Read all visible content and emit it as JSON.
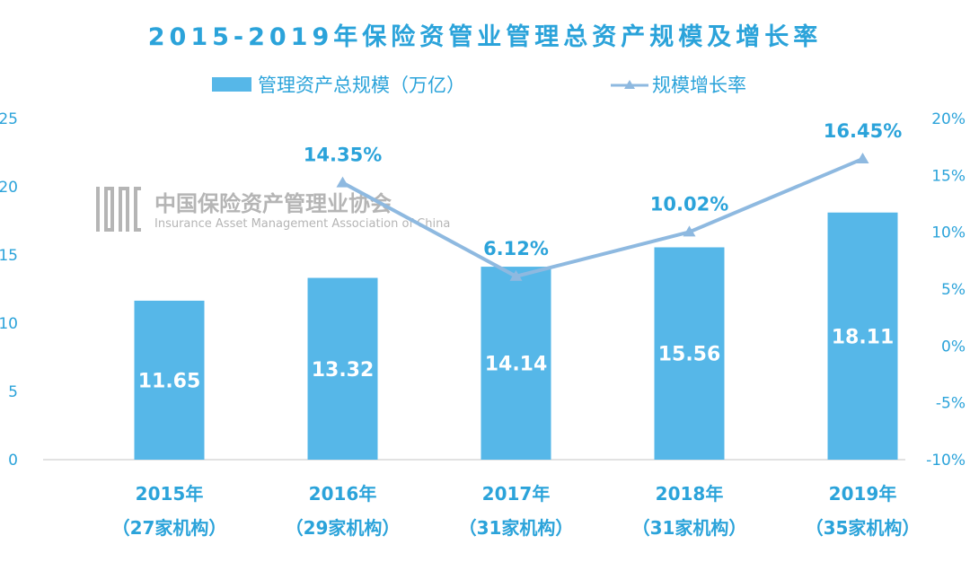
{
  "colors": {
    "bar": "#56B7E8",
    "line": "#8EB9E0",
    "text": "#2BA3DA",
    "axis": "#D9D9D9",
    "watermark": "#B5B5B5",
    "bar_label": "#FFFFFF"
  },
  "watermark": {
    "logo_icon": "iamac-logo-icon",
    "name": "中国保险资产管理业协会",
    "name_en": "Insurance Asset Management Association of China"
  },
  "chart_data": {
    "type": "bar",
    "title": "2015-2019年保险资管业管理总资产规模及增长率",
    "categories": [
      "2015年",
      "2016年",
      "2017年",
      "2018年",
      "2019年"
    ],
    "subcategories": [
      "（27家机构）",
      "（29家机构）",
      "（31家机构）",
      "（31家机构）",
      "（35家机构）"
    ],
    "series": [
      {
        "name": "管理资产总规模（万亿）",
        "type": "bar",
        "axis": "left",
        "values": [
          11.65,
          13.32,
          14.14,
          15.56,
          18.11
        ],
        "labels": [
          "11.65",
          "13.32",
          "14.14",
          "15.56",
          "18.11"
        ]
      },
      {
        "name": "规模增长率",
        "type": "line",
        "marker": "triangle",
        "axis": "right",
        "values": [
          null,
          14.35,
          6.12,
          10.02,
          16.45
        ],
        "labels": [
          "",
          "14.35%",
          "6.12%",
          "10.02%",
          "16.45%"
        ]
      }
    ],
    "ylim_left": [
      0,
      25
    ],
    "yticks_left": [
      0,
      5,
      10,
      15,
      20,
      25
    ],
    "yticks_left_labels": [
      "0",
      "5",
      "10",
      "15",
      "20",
      "25"
    ],
    "ylim_right": [
      -10,
      20
    ],
    "yticks_right": [
      -10,
      -5,
      0,
      5,
      10,
      15,
      20
    ],
    "yticks_right_labels": [
      "-10%",
      "-5%",
      "0%",
      "5%",
      "10%",
      "15%",
      "20%"
    ],
    "grid": false,
    "legend_position": "top-center"
  }
}
